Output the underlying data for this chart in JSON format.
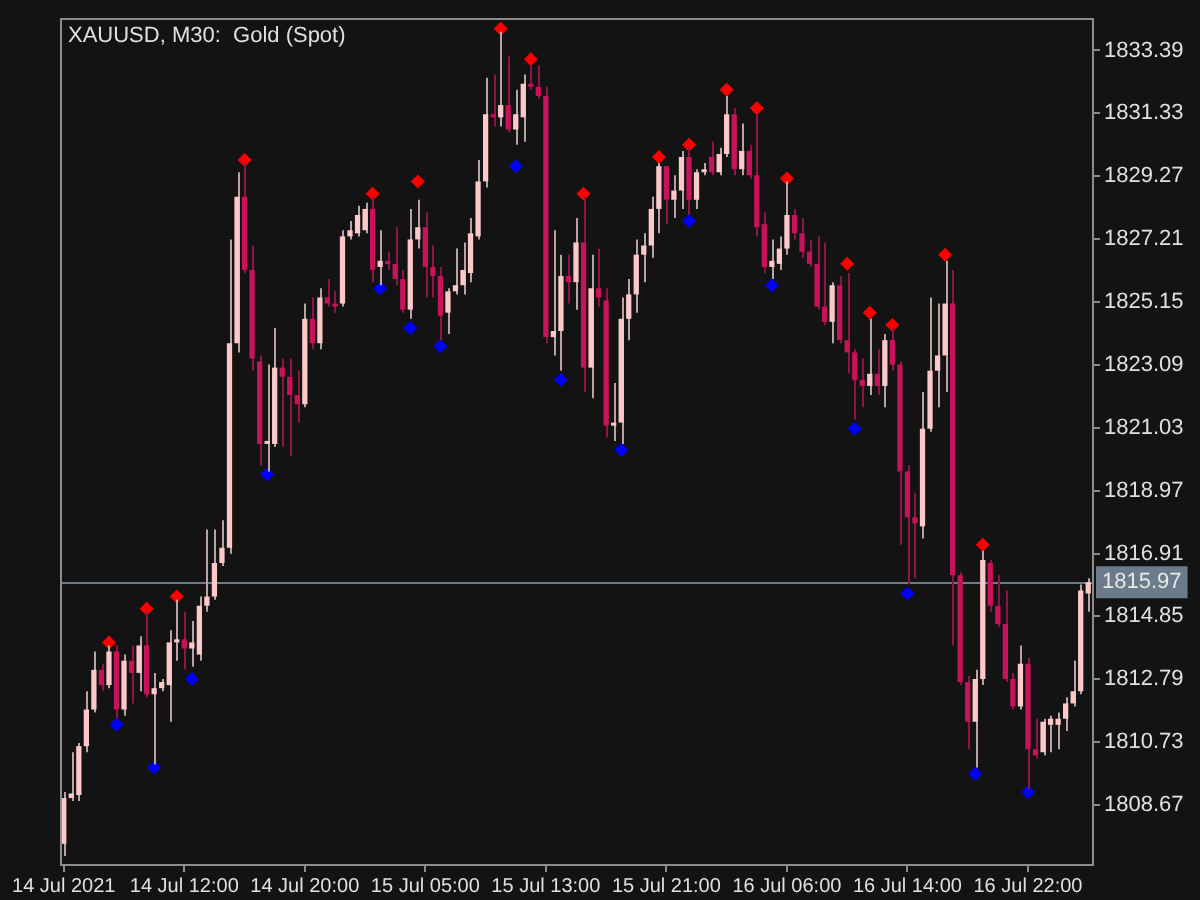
{
  "chart_data": {
    "type": "candlestick",
    "title": "XAUUSD, M30:  Gold (Spot)",
    "categories": [
      "14 Jul 2021",
      null,
      null,
      null,
      null,
      null,
      null,
      null,
      null,
      null,
      null,
      null,
      null,
      null,
      null,
      null,
      "14 Jul 12:00",
      null,
      null,
      null,
      null,
      null,
      null,
      null,
      null,
      null,
      null,
      null,
      null,
      null,
      null,
      null,
      "14 Jul 20:00",
      null,
      null,
      null,
      null,
      null,
      null,
      null,
      null,
      null,
      null,
      null,
      null,
      null,
      null,
      null,
      "15 Jul 05:00",
      null,
      null,
      null,
      null,
      null,
      null,
      null,
      null,
      null,
      null,
      null,
      null,
      null,
      null,
      null,
      "15 Jul 13:00",
      null,
      null,
      null,
      null,
      null,
      null,
      null,
      null,
      null,
      null,
      null,
      null,
      null,
      null,
      null,
      "15 Jul 21:00",
      null,
      null,
      null,
      null,
      null,
      null,
      null,
      null,
      null,
      null,
      null,
      null,
      null,
      null,
      null,
      "16 Jul 06:00",
      null,
      null,
      null,
      null,
      null,
      null,
      null,
      null,
      null,
      null,
      null,
      null,
      null,
      null,
      null,
      "16 Jul 14:00",
      null,
      null,
      null,
      null,
      null,
      null,
      null,
      null,
      null,
      null,
      null,
      null,
      null,
      null,
      null,
      "16 Jul 22:00",
      null,
      null,
      null,
      null,
      null,
      null,
      null,
      null
    ],
    "ohlc": [
      [
        1807.4,
        1809.1,
        1807.0,
        1808.9
      ],
      [
        1808.9,
        1810.4,
        1808.8,
        1809.05
      ],
      [
        1809.0,
        1810.7,
        1808.8,
        1810.6
      ],
      [
        1810.6,
        1812.4,
        1810.4,
        1811.8
      ],
      [
        1811.8,
        1813.7,
        1811.7,
        1813.1
      ],
      [
        1813.1,
        1813.3,
        1812.4,
        1812.6
      ],
      [
        1812.6,
        1813.9,
        1812.5,
        1813.7
      ],
      [
        1813.7,
        1813.9,
        1811.5,
        1811.8
      ],
      [
        1811.8,
        1813.6,
        1811.6,
        1813.4
      ],
      [
        1813.4,
        1813.9,
        1812.0,
        1813.0
      ],
      [
        1813.0,
        1814.2,
        1812.4,
        1813.9
      ],
      [
        1813.9,
        1815.0,
        1812.2,
        1812.3
      ],
      [
        1812.3,
        1813.0,
        1810.0,
        1812.5
      ],
      [
        1812.5,
        1812.8,
        1812.4,
        1812.7
      ],
      [
        1812.6,
        1814.4,
        1811.4,
        1814.0
      ],
      [
        1814.0,
        1815.4,
        1813.4,
        1814.1
      ],
      [
        1814.1,
        1815.0,
        1813.1,
        1813.8
      ],
      [
        1813.8,
        1814.7,
        1813.2,
        1814.0
      ],
      [
        1813.6,
        1815.5,
        1813.4,
        1815.2
      ],
      [
        1815.2,
        1817.7,
        1815.0,
        1815.5
      ],
      [
        1815.5,
        1817.7,
        1815.4,
        1816.6
      ],
      [
        1816.6,
        1818.0,
        1816.5,
        1817.1
      ],
      [
        1817.1,
        1827.2,
        1816.9,
        1823.8
      ],
      [
        1823.8,
        1829.4,
        1823.5,
        1828.6
      ],
      [
        1828.6,
        1829.7,
        1826.1,
        1826.2
      ],
      [
        1826.2,
        1827.0,
        1822.9,
        1823.3
      ],
      [
        1823.2,
        1823.4,
        1819.8,
        1820.5
      ],
      [
        1820.5,
        1823.1,
        1819.6,
        1820.6
      ],
      [
        1820.5,
        1824.3,
        1820.4,
        1823.0
      ],
      [
        1823.0,
        1823.3,
        1820.4,
        1822.7
      ],
      [
        1822.7,
        1823.3,
        1820.1,
        1822.1
      ],
      [
        1822.1,
        1822.9,
        1821.2,
        1821.8
      ],
      [
        1821.8,
        1825.1,
        1821.7,
        1824.6
      ],
      [
        1824.6,
        1825.3,
        1823.6,
        1823.8
      ],
      [
        1823.8,
        1825.6,
        1823.6,
        1825.3
      ],
      [
        1825.3,
        1825.9,
        1825.0,
        1825.1
      ],
      [
        1825.1,
        1825.5,
        1824.8,
        1825.0
      ],
      [
        1825.1,
        1827.5,
        1825.0,
        1827.3
      ],
      [
        1827.3,
        1827.8,
        1827.2,
        1827.5
      ],
      [
        1827.4,
        1828.3,
        1827.3,
        1828.0
      ],
      [
        1827.5,
        1828.4,
        1827.4,
        1828.2
      ],
      [
        1828.2,
        1828.6,
        1825.8,
        1826.2
      ],
      [
        1826.3,
        1827.5,
        1825.7,
        1826.5
      ],
      [
        1826.5,
        1826.8,
        1826.2,
        1826.4
      ],
      [
        1826.4,
        1827.6,
        1825.7,
        1825.9
      ],
      [
        1825.9,
        1826.2,
        1824.8,
        1824.9
      ],
      [
        1824.9,
        1828.2,
        1824.6,
        1827.2
      ],
      [
        1827.2,
        1828.5,
        1826.9,
        1827.6
      ],
      [
        1827.6,
        1828.1,
        1825.3,
        1826.3
      ],
      [
        1826.3,
        1827.0,
        1825.3,
        1826.0
      ],
      [
        1826.0,
        1826.3,
        1823.9,
        1824.7
      ],
      [
        1824.8,
        1825.6,
        1824.1,
        1825.5
      ],
      [
        1825.5,
        1826.9,
        1825.4,
        1825.7
      ],
      [
        1825.7,
        1827.1,
        1825.4,
        1826.2
      ],
      [
        1826.1,
        1827.9,
        1825.8,
        1827.4
      ],
      [
        1827.3,
        1829.8,
        1827.2,
        1829.1
      ],
      [
        1829.1,
        1832.5,
        1828.9,
        1831.3
      ],
      [
        1831.3,
        1832.6,
        1830.9,
        1831.2
      ],
      [
        1831.2,
        1834.0,
        1830.9,
        1831.6
      ],
      [
        1831.6,
        1833.2,
        1830.7,
        1830.8
      ],
      [
        1830.8,
        1832.1,
        1830.3,
        1831.3
      ],
      [
        1831.2,
        1832.6,
        1830.4,
        1832.3
      ],
      [
        1832.3,
        1832.9,
        1832.1,
        1832.2
      ],
      [
        1832.2,
        1832.9,
        1831.8,
        1831.9
      ],
      [
        1831.9,
        1832.2,
        1823.8,
        1824.0
      ],
      [
        1824.0,
        1827.5,
        1823.4,
        1824.2
      ],
      [
        1824.2,
        1826.7,
        1822.9,
        1826.0
      ],
      [
        1826.0,
        1826.7,
        1825.1,
        1825.8
      ],
      [
        1825.8,
        1827.9,
        1824.9,
        1827.1
      ],
      [
        1827.1,
        1828.6,
        1822.2,
        1823.0
      ],
      [
        1823.0,
        1826.7,
        1822.0,
        1825.6
      ],
      [
        1825.6,
        1826.9,
        1825.0,
        1825.3
      ],
      [
        1825.2,
        1825.6,
        1820.7,
        1821.1
      ],
      [
        1821.1,
        1822.5,
        1820.6,
        1821.2
      ],
      [
        1821.2,
        1825.3,
        1820.5,
        1824.6
      ],
      [
        1824.6,
        1825.9,
        1823.9,
        1825.4
      ],
      [
        1825.4,
        1827.2,
        1824.8,
        1826.7
      ],
      [
        1826.7,
        1827.4,
        1825.8,
        1827.0
      ],
      [
        1827.0,
        1828.6,
        1826.6,
        1828.2
      ],
      [
        1828.2,
        1829.7,
        1827.4,
        1829.6
      ],
      [
        1829.6,
        1829.6,
        1827.7,
        1828.5
      ],
      [
        1828.5,
        1829.3,
        1827.9,
        1828.8
      ],
      [
        1828.8,
        1830.1,
        1828.2,
        1829.9
      ],
      [
        1829.9,
        1830.2,
        1828.0,
        1828.5
      ],
      [
        1828.5,
        1829.5,
        1828.2,
        1829.4
      ],
      [
        1829.4,
        1829.7,
        1829.3,
        1829.5
      ],
      [
        1829.9,
        1830.4,
        1829.3,
        1829.4
      ],
      [
        1829.4,
        1830.2,
        1829.3,
        1830.0
      ],
      [
        1830.0,
        1831.9,
        1829.9,
        1831.3
      ],
      [
        1831.3,
        1831.5,
        1829.3,
        1829.5
      ],
      [
        1829.5,
        1831.0,
        1829.3,
        1830.1
      ],
      [
        1830.1,
        1830.3,
        1829.2,
        1829.3
      ],
      [
        1829.3,
        1831.3,
        1827.3,
        1827.6
      ],
      [
        1827.7,
        1828.1,
        1826.1,
        1826.3
      ],
      [
        1826.3,
        1827.2,
        1825.9,
        1826.5
      ],
      [
        1826.4,
        1827.3,
        1826.2,
        1826.9
      ],
      [
        1826.9,
        1829.1,
        1826.7,
        1828.0
      ],
      [
        1828.0,
        1828.2,
        1827.2,
        1827.4
      ],
      [
        1827.4,
        1827.9,
        1826.6,
        1826.8
      ],
      [
        1826.8,
        1827.2,
        1826.3,
        1826.4
      ],
      [
        1826.4,
        1827.3,
        1824.9,
        1825.0
      ],
      [
        1825.0,
        1827.1,
        1824.4,
        1824.5
      ],
      [
        1824.5,
        1825.8,
        1823.8,
        1825.7
      ],
      [
        1825.7,
        1826.0,
        1823.8,
        1823.9
      ],
      [
        1823.9,
        1826.1,
        1822.8,
        1823.5
      ],
      [
        1823.5,
        1823.6,
        1821.3,
        1822.6
      ],
      [
        1822.6,
        1823.3,
        1821.7,
        1822.4
      ],
      [
        1822.4,
        1824.6,
        1822.1,
        1822.8
      ],
      [
        1822.8,
        1823.6,
        1822.1,
        1822.4
      ],
      [
        1822.4,
        1824.1,
        1821.7,
        1823.9
      ],
      [
        1823.9,
        1824.3,
        1822.9,
        1823.1
      ],
      [
        1823.1,
        1823.2,
        1817.2,
        1819.6
      ],
      [
        1819.6,
        1819.8,
        1815.9,
        1818.1
      ],
      [
        1818.1,
        1818.9,
        1816.1,
        1817.9
      ],
      [
        1817.8,
        1822.2,
        1817.4,
        1821.0
      ],
      [
        1821.0,
        1825.3,
        1820.9,
        1822.9
      ],
      [
        1822.9,
        1825.1,
        1821.7,
        1823.4
      ],
      [
        1823.4,
        1826.5,
        1822.2,
        1825.1
      ],
      [
        1825.1,
        1826.2,
        1813.9,
        1816.2
      ],
      [
        1816.2,
        1816.3,
        1812.6,
        1812.7
      ],
      [
        1812.7,
        1812.9,
        1810.5,
        1811.4
      ],
      [
        1811.4,
        1813.1,
        1809.9,
        1812.8
      ],
      [
        1812.8,
        1817.0,
        1812.6,
        1816.7
      ],
      [
        1816.6,
        1816.7,
        1815.0,
        1815.2
      ],
      [
        1815.2,
        1816.2,
        1814.5,
        1814.6
      ],
      [
        1814.6,
        1815.7,
        1812.7,
        1812.8
      ],
      [
        1812.8,
        1813.0,
        1811.8,
        1811.9
      ],
      [
        1811.9,
        1813.9,
        1811.8,
        1813.3
      ],
      [
        1813.3,
        1813.5,
        1809.2,
        1810.5
      ],
      [
        1810.5,
        1811.5,
        1810.2,
        1810.3
      ],
      [
        1810.4,
        1811.5,
        1810.3,
        1811.4
      ],
      [
        1811.3,
        1811.6,
        1810.4,
        1811.5
      ],
      [
        1811.3,
        1811.7,
        1810.5,
        1811.5
      ],
      [
        1811.5,
        1812.2,
        1811.1,
        1812.0
      ],
      [
        1812.0,
        1813.4,
        1811.9,
        1812.4
      ],
      [
        1812.4,
        1815.9,
        1812.3,
        1815.7
      ],
      [
        1815.6,
        1816.1,
        1815.0,
        1815.97
      ]
    ],
    "series": [
      {
        "type": "scatter",
        "color": "#ff0000",
        "values": [
          null,
          null,
          null,
          null,
          null,
          null,
          1814.0,
          null,
          null,
          null,
          null,
          1815.1,
          null,
          null,
          null,
          1815.5,
          null,
          null,
          null,
          null,
          null,
          null,
          null,
          null,
          1829.8,
          null,
          null,
          null,
          null,
          null,
          null,
          null,
          null,
          null,
          null,
          null,
          null,
          null,
          null,
          null,
          null,
          1828.7,
          null,
          null,
          null,
          null,
          null,
          1829.1,
          null,
          null,
          null,
          null,
          null,
          null,
          null,
          null,
          null,
          null,
          1834.1,
          null,
          null,
          null,
          1833.1,
          null,
          null,
          null,
          null,
          null,
          null,
          1828.7,
          null,
          null,
          null,
          null,
          null,
          null,
          null,
          null,
          null,
          1829.9,
          null,
          null,
          null,
          1830.3,
          null,
          null,
          null,
          null,
          1832.1,
          null,
          null,
          null,
          1831.5,
          null,
          null,
          null,
          1829.2,
          null,
          null,
          null,
          null,
          null,
          null,
          null,
          1826.4,
          null,
          null,
          1824.8,
          null,
          null,
          1824.4,
          null,
          null,
          null,
          null,
          null,
          null,
          1826.7,
          null,
          null,
          null,
          null,
          1817.2,
          null,
          null,
          null,
          null,
          null,
          null,
          null,
          null,
          null,
          null,
          null,
          null,
          null,
          null
        ]
      },
      {
        "type": "scatter",
        "color": "#0000ff",
        "values": [
          null,
          null,
          null,
          null,
          null,
          null,
          null,
          1811.3,
          null,
          null,
          null,
          null,
          1809.9,
          null,
          null,
          null,
          null,
          1812.8,
          null,
          null,
          null,
          null,
          null,
          null,
          null,
          null,
          null,
          1819.5,
          null,
          null,
          null,
          null,
          null,
          null,
          null,
          null,
          null,
          null,
          null,
          null,
          null,
          null,
          1825.6,
          null,
          null,
          null,
          1824.3,
          null,
          null,
          null,
          1823.7,
          null,
          null,
          null,
          null,
          null,
          null,
          null,
          null,
          null,
          1829.6,
          null,
          null,
          null,
          null,
          null,
          1822.6,
          null,
          null,
          null,
          null,
          null,
          null,
          null,
          1820.3,
          null,
          null,
          null,
          null,
          null,
          null,
          null,
          null,
          1827.8,
          null,
          null,
          null,
          null,
          null,
          null,
          null,
          null,
          null,
          null,
          1825.7,
          null,
          null,
          null,
          null,
          null,
          null,
          null,
          null,
          null,
          null,
          1821.0,
          null,
          null,
          null,
          null,
          null,
          null,
          1815.6,
          null,
          null,
          null,
          null,
          null,
          null,
          null,
          null,
          1809.7,
          null,
          null,
          null,
          null,
          null,
          null,
          1809.1,
          null,
          null,
          null,
          null,
          null,
          null,
          null,
          null
        ]
      }
    ],
    "ylim": [
      1806.74,
      1834.48
    ],
    "yticks": [
      1808.67,
      1810.73,
      1812.79,
      1814.85,
      1816.91,
      1818.97,
      1821.03,
      1823.09,
      1825.15,
      1827.21,
      1829.27,
      1831.33,
      1833.39
    ],
    "ref_lines": [
      {
        "axis": "y",
        "value": 1815.97,
        "label": "1815.97",
        "color": "#6b7b8c"
      }
    ],
    "marker": "diamond",
    "legend": false,
    "grid": false
  }
}
